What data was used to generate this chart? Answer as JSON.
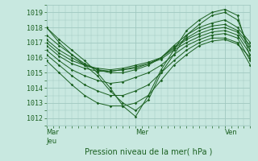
{
  "title": "",
  "xlabel": "Pression niveau de la mer( hPa )",
  "background_color": "#c8e8e0",
  "grid_color": "#a0c8c0",
  "line_color": "#1a6020",
  "yticks": [
    1012,
    1013,
    1014,
    1015,
    1016,
    1017,
    1018,
    1019
  ],
  "ylim": [
    1011.5,
    1019.5
  ],
  "xlim": [
    0,
    96
  ],
  "xtick_positions": [
    0,
    42,
    84
  ],
  "xtick_labels": [
    "Mar\nJeu",
    "Mer",
    "Ven"
  ],
  "lines": [
    {
      "x": [
        0,
        6,
        12,
        18,
        24,
        30,
        36,
        42,
        48,
        54,
        60,
        66,
        72,
        78,
        84,
        90,
        96
      ],
      "y": [
        1018.0,
        1017.2,
        1016.5,
        1015.8,
        1015.0,
        1014.0,
        1012.8,
        1012.1,
        1013.5,
        1015.2,
        1016.5,
        1017.8,
        1018.5,
        1019.0,
        1019.2,
        1018.8,
        1016.0
      ]
    },
    {
      "x": [
        0,
        6,
        12,
        18,
        24,
        30,
        36,
        42,
        48,
        54,
        60,
        66,
        72,
        78,
        84,
        90,
        96
      ],
      "y": [
        1018.0,
        1017.0,
        1016.2,
        1015.5,
        1014.8,
        1013.8,
        1013.0,
        1012.5,
        1013.2,
        1015.0,
        1016.2,
        1017.5,
        1018.2,
        1018.8,
        1019.0,
        1018.5,
        1016.5
      ]
    },
    {
      "x": [
        0,
        6,
        12,
        18,
        24,
        30,
        36,
        42,
        48,
        54,
        60,
        66,
        72,
        78,
        84,
        90,
        96
      ],
      "y": [
        1017.5,
        1016.8,
        1016.2,
        1015.6,
        1015.2,
        1015.0,
        1015.0,
        1015.2,
        1015.5,
        1016.0,
        1016.8,
        1017.5,
        1018.0,
        1018.3,
        1018.5,
        1018.0,
        1017.0
      ]
    },
    {
      "x": [
        0,
        6,
        12,
        18,
        24,
        30,
        36,
        42,
        48,
        54,
        60,
        66,
        72,
        78,
        84,
        90,
        96
      ],
      "y": [
        1017.2,
        1016.5,
        1016.0,
        1015.5,
        1015.2,
        1015.1,
        1015.2,
        1015.3,
        1015.6,
        1016.0,
        1016.7,
        1017.3,
        1017.8,
        1018.1,
        1018.2,
        1017.8,
        1016.8
      ]
    },
    {
      "x": [
        0,
        6,
        12,
        18,
        24,
        30,
        36,
        42,
        48,
        54,
        60,
        66,
        72,
        78,
        84,
        90,
        96
      ],
      "y": [
        1017.0,
        1016.3,
        1015.8,
        1015.5,
        1015.3,
        1015.2,
        1015.3,
        1015.5,
        1015.7,
        1016.0,
        1016.6,
        1017.2,
        1017.6,
        1017.9,
        1018.0,
        1017.7,
        1016.5
      ]
    },
    {
      "x": [
        0,
        6,
        12,
        18,
        24,
        30,
        36,
        42,
        48,
        54,
        60,
        66,
        72,
        78,
        84,
        90,
        96
      ],
      "y": [
        1016.8,
        1016.1,
        1015.6,
        1015.3,
        1015.1,
        1015.1,
        1015.2,
        1015.4,
        1015.6,
        1015.9,
        1016.5,
        1017.0,
        1017.4,
        1017.7,
        1017.8,
        1017.5,
        1016.2
      ]
    },
    {
      "x": [
        0,
        6,
        12,
        18,
        24,
        30,
        36,
        42,
        48,
        54,
        60,
        66,
        72,
        78,
        84,
        90,
        96
      ],
      "y": [
        1016.5,
        1015.8,
        1015.2,
        1014.8,
        1014.5,
        1014.3,
        1014.4,
        1014.7,
        1015.0,
        1015.5,
        1016.2,
        1016.8,
        1017.2,
        1017.5,
        1017.6,
        1017.3,
        1015.8
      ]
    },
    {
      "x": [
        0,
        6,
        12,
        18,
        24,
        30,
        36,
        42,
        48,
        54,
        60,
        66,
        72,
        78,
        84,
        90,
        96
      ],
      "y": [
        1016.2,
        1015.5,
        1014.8,
        1014.2,
        1013.8,
        1013.5,
        1013.5,
        1013.8,
        1014.2,
        1015.0,
        1015.8,
        1016.5,
        1017.0,
        1017.3,
        1017.3,
        1017.0,
        1015.5
      ]
    },
    {
      "x": [
        0,
        6,
        12,
        18,
        24,
        30,
        36,
        42,
        48,
        54,
        60,
        66,
        72,
        78,
        84,
        90,
        96
      ],
      "y": [
        1015.8,
        1015.0,
        1014.2,
        1013.5,
        1013.0,
        1012.8,
        1012.8,
        1013.0,
        1013.5,
        1014.5,
        1015.5,
        1016.2,
        1016.8,
        1017.1,
        1017.2,
        1016.9,
        1016.0
      ]
    }
  ]
}
